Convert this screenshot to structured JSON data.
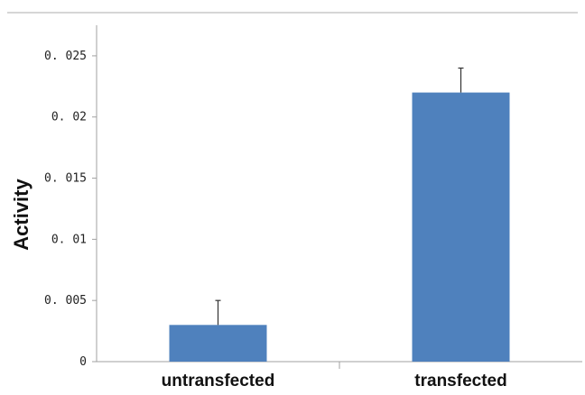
{
  "chart_data": {
    "type": "bar",
    "title": "",
    "xlabel": "",
    "ylabel": "Activity",
    "categories": [
      "untransfected",
      "transfected"
    ],
    "values": [
      0.003,
      0.022
    ],
    "error_bars": [
      0.002,
      0.002
    ],
    "ylim": [
      0,
      0.0275
    ],
    "yticks": [
      0,
      0.005,
      0.01,
      0.015,
      0.02,
      0.025
    ],
    "ytick_labels": [
      "0",
      "0. 005",
      "0. 01",
      "0. 015",
      "0. 02",
      "0. 025"
    ],
    "grid": false,
    "legend": "none",
    "bar_color": "#4f81bd",
    "axis_color": "#a0a0a0",
    "frame_color": "#bdbdbd"
  }
}
